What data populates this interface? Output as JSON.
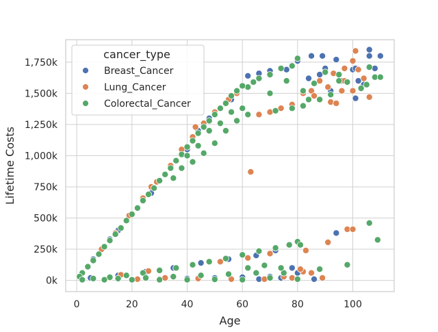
{
  "chart_data": {
    "type": "scatter",
    "title": "",
    "xlabel": "Age",
    "ylabel": "Lifetime Costs",
    "xlim": [
      -4,
      115
    ],
    "ylim": [
      -90000,
      1930000
    ],
    "x_ticks": [
      0,
      20,
      40,
      60,
      80,
      100
    ],
    "x_tick_labels": [
      "0",
      "20",
      "40",
      "60",
      "80",
      "100"
    ],
    "y_ticks": [
      0,
      250000,
      500000,
      750000,
      1000000,
      1250000,
      1500000,
      1750000
    ],
    "y_tick_labels": [
      "0k",
      "250k",
      "500k",
      "750k",
      "1,000k",
      "1,250k",
      "1,500k",
      "1,750k"
    ],
    "grid": true,
    "legend": {
      "title": "cancer_type",
      "placement": "top-left",
      "entries": [
        "Breast_Cancer",
        "Lung_Cancer",
        "Colorectal_Cancer"
      ]
    },
    "series": [
      {
        "name": "Breast_Cancer",
        "color": "#4c72b0",
        "points": [
          [
            85,
            1800000
          ],
          [
            89,
            1800000
          ],
          [
            94,
            1770000
          ],
          [
            100,
            1690000
          ],
          [
            101,
            1700000
          ],
          [
            106,
            1850000
          ],
          [
            106,
            1800000
          ],
          [
            110,
            1800000
          ],
          [
            108,
            1700000
          ],
          [
            90,
            1700000
          ],
          [
            96,
            1600000
          ],
          [
            102,
            1600000
          ],
          [
            104,
            1570000
          ],
          [
            101,
            1460000
          ],
          [
            84,
            1620000
          ],
          [
            88,
            1650000
          ],
          [
            92,
            1520000
          ],
          [
            80,
            1760000
          ],
          [
            76,
            1690000
          ],
          [
            70,
            1680000
          ],
          [
            66,
            1660000
          ],
          [
            62,
            1640000
          ],
          [
            48,
            1300000
          ],
          [
            44,
            1200000
          ],
          [
            52,
            1380000
          ],
          [
            56,
            1450000
          ],
          [
            40,
            1050000
          ],
          [
            36,
            960000
          ],
          [
            30,
            800000
          ],
          [
            24,
            650000
          ],
          [
            18,
            480000
          ],
          [
            12,
            330000
          ],
          [
            6,
            170000
          ],
          [
            2,
            60000
          ],
          [
            15,
            400000
          ],
          [
            27,
            700000
          ],
          [
            34,
            900000
          ],
          [
            42,
            1120000
          ],
          [
            58,
            1500000
          ],
          [
            94,
            380000
          ],
          [
            78,
            100000
          ],
          [
            80,
            60000
          ],
          [
            70,
            30000
          ],
          [
            60,
            25000
          ],
          [
            50,
            20000
          ],
          [
            40,
            15000
          ],
          [
            30,
            10000
          ],
          [
            20,
            8000
          ],
          [
            10,
            5000
          ],
          [
            5,
            20000
          ],
          [
            35,
            100000
          ],
          [
            45,
            140000
          ],
          [
            55,
            170000
          ],
          [
            65,
            200000
          ],
          [
            72,
            240000
          ],
          [
            25,
            70000
          ],
          [
            15,
            40000
          ],
          [
            74,
            20000
          ],
          [
            66,
            10000
          ],
          [
            86,
            10000
          ]
        ]
      },
      {
        "name": "Lung_Cancer",
        "color": "#dd8452",
        "points": [
          [
            101,
            1840000
          ],
          [
            100,
            1760000
          ],
          [
            97,
            1700000
          ],
          [
            102,
            1690000
          ],
          [
            93,
            1660000
          ],
          [
            97,
            1600000
          ],
          [
            104,
            1620000
          ],
          [
            92,
            1430000
          ],
          [
            94,
            1420000
          ],
          [
            96,
            1520000
          ],
          [
            100,
            1520000
          ],
          [
            106,
            1470000
          ],
          [
            91,
            1550000
          ],
          [
            88,
            1600000
          ],
          [
            85,
            1520000
          ],
          [
            86,
            1480000
          ],
          [
            82,
            1500000
          ],
          [
            78,
            1410000
          ],
          [
            74,
            1380000
          ],
          [
            70,
            1350000
          ],
          [
            66,
            1330000
          ],
          [
            63,
            870000
          ],
          [
            60,
            1560000
          ],
          [
            58,
            1500000
          ],
          [
            55,
            1450000
          ],
          [
            50,
            1350000
          ],
          [
            46,
            1260000
          ],
          [
            42,
            1150000
          ],
          [
            38,
            1050000
          ],
          [
            34,
            920000
          ],
          [
            29,
            790000
          ],
          [
            24,
            660000
          ],
          [
            19,
            520000
          ],
          [
            14,
            380000
          ],
          [
            9,
            250000
          ],
          [
            4,
            110000
          ],
          [
            27,
            750000
          ],
          [
            43,
            1230000
          ],
          [
            98,
            410000
          ],
          [
            100,
            410000
          ],
          [
            91,
            305000
          ],
          [
            83,
            240000
          ],
          [
            82,
            70000
          ],
          [
            81,
            90000
          ],
          [
            85,
            60000
          ],
          [
            78,
            20000
          ],
          [
            68,
            10000
          ],
          [
            56,
            10000
          ],
          [
            44,
            15000
          ],
          [
            32,
            20000
          ],
          [
            22,
            10000
          ],
          [
            12,
            20000
          ],
          [
            52,
            150000
          ],
          [
            62,
            180000
          ],
          [
            70,
            215000
          ],
          [
            36,
            100000
          ],
          [
            26,
            75000
          ],
          [
            16,
            45000
          ],
          [
            75,
            30000
          ],
          [
            89,
            20000
          ]
        ]
      },
      {
        "name": "Colorectal_Cancer",
        "color": "#55a868",
        "points": [
          [
            106,
            1710000
          ],
          [
            108,
            1630000
          ],
          [
            110,
            1630000
          ],
          [
            103,
            1540000
          ],
          [
            105,
            1570000
          ],
          [
            98,
            1590000
          ],
          [
            95,
            1650000
          ],
          [
            90,
            1670000
          ],
          [
            92,
            1490000
          ],
          [
            86,
            1580000
          ],
          [
            84,
            1450000
          ],
          [
            82,
            1400000
          ],
          [
            80,
            1780000
          ],
          [
            78,
            1720000
          ],
          [
            74,
            1700000
          ],
          [
            70,
            1650000
          ],
          [
            66,
            1620000
          ],
          [
            64,
            1590000
          ],
          [
            62,
            1550000
          ],
          [
            60,
            1560000
          ],
          [
            58,
            1520000
          ],
          [
            56,
            1480000
          ],
          [
            54,
            1420000
          ],
          [
            52,
            1380000
          ],
          [
            50,
            1330000
          ],
          [
            48,
            1280000
          ],
          [
            46,
            1230000
          ],
          [
            44,
            1180000
          ],
          [
            42,
            1120000
          ],
          [
            40,
            1070000
          ],
          [
            38,
            1010000
          ],
          [
            36,
            960000
          ],
          [
            34,
            900000
          ],
          [
            32,
            850000
          ],
          [
            30,
            800000
          ],
          [
            28,
            740000
          ],
          [
            26,
            690000
          ],
          [
            24,
            640000
          ],
          [
            22,
            580000
          ],
          [
            20,
            530000
          ],
          [
            18,
            480000
          ],
          [
            16,
            420000
          ],
          [
            14,
            370000
          ],
          [
            12,
            320000
          ],
          [
            10,
            270000
          ],
          [
            8,
            210000
          ],
          [
            6,
            160000
          ],
          [
            4,
            110000
          ],
          [
            2,
            60000
          ],
          [
            1,
            30000
          ],
          [
            40,
            1000000
          ],
          [
            44,
            1080000
          ],
          [
            48,
            1200000
          ],
          [
            52,
            1260000
          ],
          [
            56,
            1350000
          ],
          [
            60,
            1380000
          ],
          [
            35,
            820000
          ],
          [
            38,
            900000
          ],
          [
            42,
            950000
          ],
          [
            46,
            1020000
          ],
          [
            50,
            1100000
          ],
          [
            54,
            1200000
          ],
          [
            58,
            1280000
          ],
          [
            62,
            1330000
          ],
          [
            70,
            1500000
          ],
          [
            76,
            1600000
          ],
          [
            72,
            1360000
          ],
          [
            78,
            1380000
          ],
          [
            82,
            1520000
          ],
          [
            88,
            1450000
          ],
          [
            95,
            1600000
          ],
          [
            106,
            460000
          ],
          [
            109,
            325000
          ],
          [
            98,
            125000
          ],
          [
            88,
            90000
          ],
          [
            80,
            310000
          ],
          [
            81,
            285000
          ],
          [
            77,
            285000
          ],
          [
            72,
            260000
          ],
          [
            66,
            235000
          ],
          [
            60,
            205000
          ],
          [
            54,
            175000
          ],
          [
            48,
            150000
          ],
          [
            42,
            125000
          ],
          [
            36,
            100000
          ],
          [
            30,
            80000
          ],
          [
            24,
            60000
          ],
          [
            18,
            40000
          ],
          [
            12,
            25000
          ],
          [
            6,
            15000
          ],
          [
            2,
            5000
          ],
          [
            10,
            5000
          ],
          [
            20,
            5000
          ],
          [
            30,
            5000
          ],
          [
            40,
            5000
          ],
          [
            50,
            8000
          ],
          [
            60,
            5000
          ],
          [
            70,
            20000
          ],
          [
            75,
            60000
          ],
          [
            80,
            10000
          ],
          [
            35,
            30000
          ],
          [
            45,
            40000
          ],
          [
            55,
            50000
          ],
          [
            65,
            60000
          ],
          [
            25,
            20000
          ],
          [
            15,
            15000
          ],
          [
            62,
            100000
          ],
          [
            68,
            120000
          ],
          [
            74,
            100000
          ]
        ]
      }
    ]
  }
}
